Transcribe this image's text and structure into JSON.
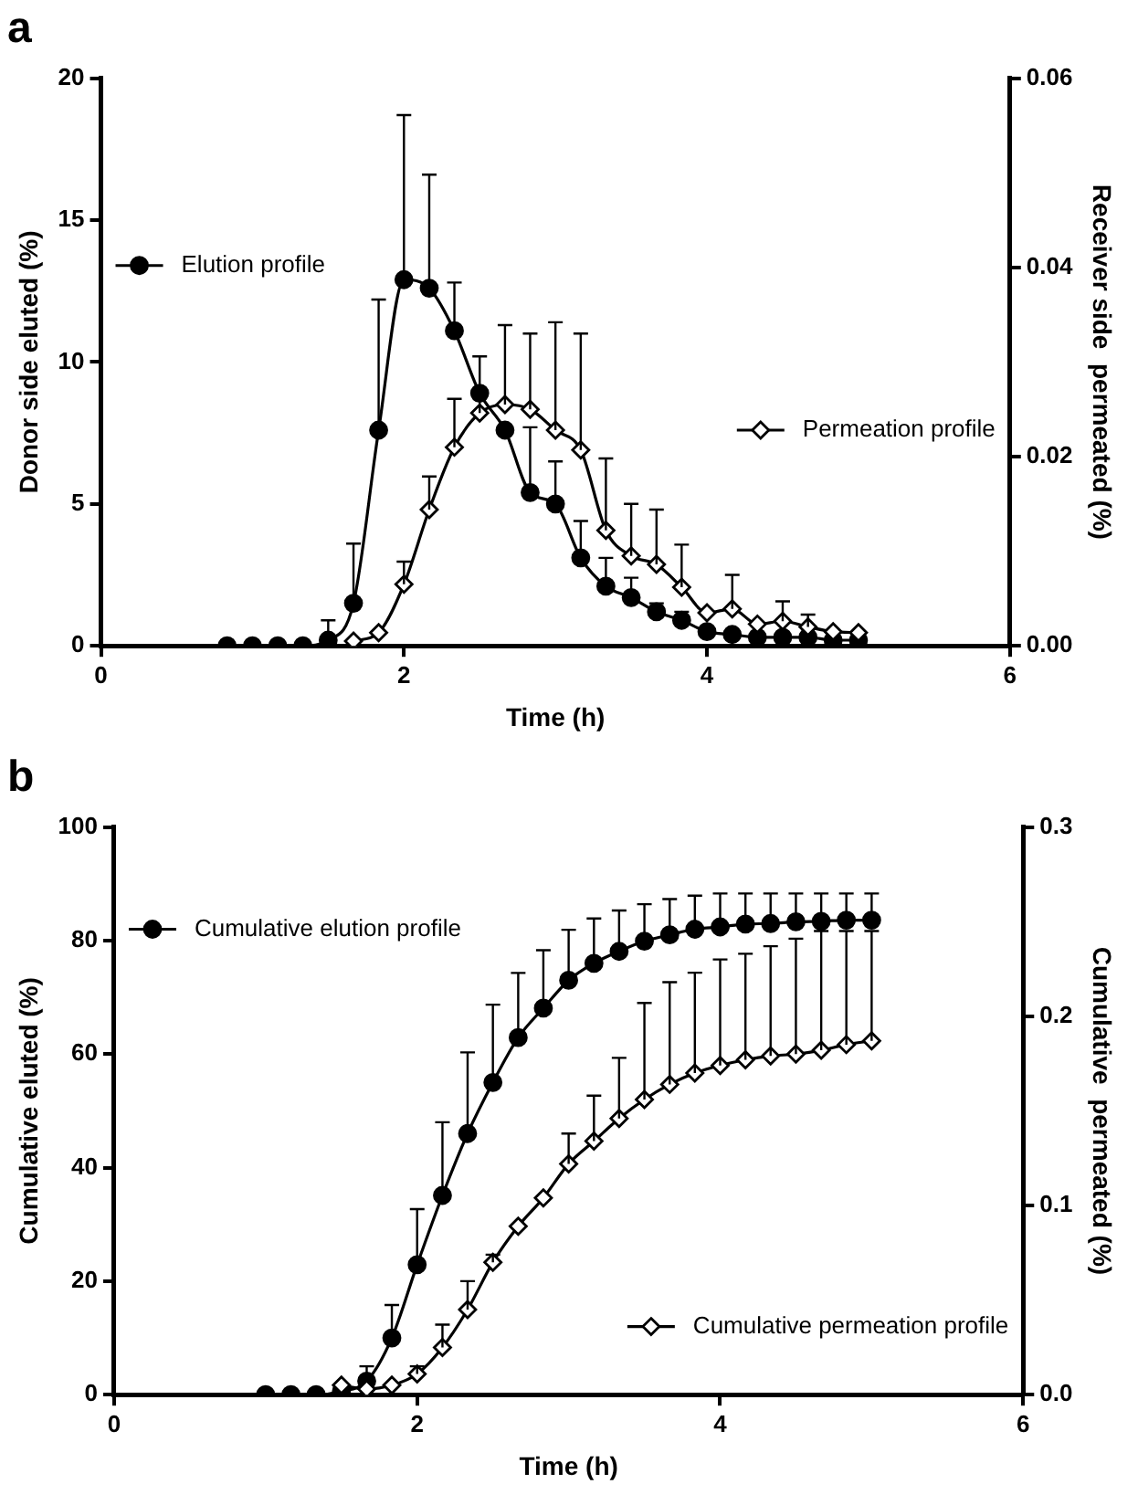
{
  "chart_data": [
    {
      "type": "line",
      "title": "a",
      "xlabel": "Time (h)",
      "ylabel": "Donor side eluted (%)",
      "y2label": "Receiver side  permeated (%)",
      "xlim": [
        0,
        6
      ],
      "xticks": [
        0,
        2,
        4,
        6
      ],
      "ylim": [
        0,
        20
      ],
      "yticks": [
        0,
        5,
        10,
        15,
        20
      ],
      "y2lim": [
        0,
        0.06
      ],
      "y2ticks": [
        {
          "value": 0,
          "label": "0.00"
        },
        0.02,
        0.04,
        0.06
      ],
      "grid": false,
      "legend": "top left",
      "series": [
        {
          "name": "Elution profile",
          "color": "#000000",
          "marker": "circle",
          "x": [
            0.833,
            1,
            1.167,
            1.333,
            1.5,
            1.667,
            1.833,
            2,
            2.167,
            2.333,
            2.5,
            2.667,
            2.833,
            3,
            3.167,
            3.333,
            3.5,
            3.667,
            3.833,
            4,
            4.167,
            4.333,
            4.5,
            4.667,
            4.833,
            5
          ],
          "values": [
            0,
            0,
            0,
            0,
            0.2,
            1.5,
            7.6,
            12.9,
            12.6,
            11.1,
            8.9,
            7.6,
            5.4,
            5.0,
            3.1,
            2.1,
            1.7,
            1.2,
            0.9,
            0.5,
            0.4,
            0.3,
            0.3,
            0.3,
            0.2,
            0.2
          ],
          "errors": [
            null,
            null,
            null,
            null,
            [
              0.2,
              0.9
            ],
            [
              1.5,
              3.6
            ],
            [
              7.6,
              12.2
            ],
            [
              12.9,
              18.7
            ],
            [
              12.6,
              16.6
            ],
            [
              11.1,
              12.8
            ],
            null,
            null,
            [
              5.4,
              7.7
            ],
            [
              5.0,
              6.5
            ],
            [
              3.1,
              4.4
            ],
            [
              2.1,
              3.1
            ],
            [
              1.7,
              2.4
            ],
            [
              1.2,
              1.5
            ],
            [
              0.9,
              1.2
            ],
            null,
            null,
            null,
            null,
            null,
            null,
            null
          ]
        },
        {
          "name": "Permeation profile",
          "color": "#000000",
          "marker": "diamond",
          "axis": "y2",
          "x": [
            1.667,
            1.833,
            2,
            2.167,
            2.333,
            2.5,
            2.667,
            2.833,
            3,
            3.167,
            3.333,
            3.5,
            3.667,
            3.833,
            4,
            4.167,
            4.333,
            4.5,
            4.667,
            4.833,
            5
          ],
          "values": [
            0.0005,
            0.0014,
            0.0065,
            0.0144,
            0.021,
            0.0246,
            0.0255,
            0.025,
            0.0228,
            0.0207,
            0.0122,
            0.0095,
            0.0086,
            0.0062,
            0.0035,
            0.0039,
            0.0023,
            0.0026,
            0.002,
            0.0015,
            0.0014
          ],
          "errors": [
            null,
            null,
            [
              0.0065,
              0.0089
            ],
            [
              0.0144,
              0.0179
            ],
            [
              0.021,
              0.0261
            ],
            [
              0.0246,
              0.0306
            ],
            [
              0.0255,
              0.0339
            ],
            [
              0.025,
              0.033
            ],
            [
              0.0228,
              0.0342
            ],
            [
              0.0207,
              0.033
            ],
            [
              0.0122,
              0.0198
            ],
            [
              0.0095,
              0.015
            ],
            [
              0.0086,
              0.0144
            ],
            [
              0.0062,
              0.0107
            ],
            null,
            [
              0.0039,
              0.0075
            ],
            null,
            [
              0.0026,
              0.0047
            ],
            [
              0.002,
              0.0033
            ],
            null,
            null
          ]
        }
      ]
    },
    {
      "type": "line",
      "title": "b",
      "xlabel": "Time (h)",
      "ylabel": "Cumulative eluted (%)",
      "y2label": "Cumulative  permeated (%)",
      "xlim": [
        0,
        6
      ],
      "xticks": [
        0,
        2,
        4,
        6
      ],
      "ylim": [
        0,
        100
      ],
      "yticks": [
        0,
        20,
        40,
        60,
        80,
        100
      ],
      "y2lim": [
        0,
        0.3
      ],
      "y2ticks": [
        {
          "value": 0,
          "label": "0.0"
        },
        0.1,
        0.2,
        0.3
      ],
      "grid": false,
      "legend": "left",
      "series": [
        {
          "name": "Cumulative elution profile",
          "color": "#000000",
          "marker": "circle",
          "x": [
            1,
            1.167,
            1.333,
            1.5,
            1.667,
            1.833,
            2,
            2.167,
            2.333,
            2.5,
            2.667,
            2.833,
            3,
            3.167,
            3.333,
            3.5,
            3.667,
            3.833,
            4,
            4.167,
            4.333,
            4.5,
            4.667,
            4.833,
            5
          ],
          "values": [
            0,
            0,
            0,
            0.6,
            2.4,
            10.0,
            22.9,
            35.1,
            46,
            55,
            62.9,
            68.1,
            73,
            76,
            78.1,
            79.9,
            81,
            82,
            82.4,
            82.9,
            83,
            83.3,
            83.4,
            83.6,
            83.6
          ],
          "errors": [
            null,
            null,
            null,
            null,
            [
              2.4,
              5
            ],
            [
              10,
              15.8
            ],
            [
              22.9,
              32.7
            ],
            [
              35.1,
              48
            ],
            [
              46,
              60.3
            ],
            [
              55,
              68.7
            ],
            [
              62.9,
              74.3
            ],
            [
              68.1,
              78.3
            ],
            [
              73,
              81.9
            ],
            [
              76,
              83.9
            ],
            [
              78.1,
              85.3
            ],
            [
              79.9,
              86.4
            ],
            [
              81,
              87.3
            ],
            [
              82,
              87.9
            ],
            [
              82.4,
              88.3
            ],
            [
              82.9,
              88.3
            ],
            [
              83,
              88.3
            ],
            [
              83.3,
              88.3
            ],
            [
              83.4,
              88.3
            ],
            [
              83.6,
              88.3
            ],
            [
              83.6,
              88.3
            ]
          ]
        },
        {
          "name": "Cumulative permeation profile",
          "color": "#000000",
          "marker": "diamond",
          "axis": "y2",
          "x": [
            1.5,
            1.667,
            1.833,
            2,
            2.167,
            2.333,
            2.5,
            2.667,
            2.833,
            3,
            3.167,
            3.333,
            3.5,
            3.667,
            3.833,
            4,
            4.167,
            4.333,
            4.5,
            4.667,
            4.833,
            5
          ],
          "values": [
            0.005,
            0.003,
            0.005,
            0.011,
            0.025,
            0.045,
            0.07,
            0.089,
            0.104,
            0.122,
            0.134,
            0.146,
            0.156,
            0.164,
            0.17,
            0.174,
            0.177,
            0.179,
            0.18,
            0.182,
            0.185,
            0.187
          ],
          "errors": [
            null,
            null,
            null,
            [
              0.011,
              0.015
            ],
            [
              0.025,
              0.037
            ],
            [
              0.045,
              0.06
            ],
            [
              0.07,
              0.074
            ],
            null,
            null,
            [
              0.122,
              0.138
            ],
            [
              0.134,
              0.158
            ],
            [
              0.146,
              0.178
            ],
            [
              0.156,
              0.207
            ],
            [
              0.164,
              0.218
            ],
            [
              0.17,
              0.223
            ],
            [
              0.174,
              0.23
            ],
            [
              0.177,
              0.233
            ],
            [
              0.179,
              0.237
            ],
            [
              0.18,
              0.241
            ],
            [
              0.182,
              0.245
            ],
            [
              0.185,
              0.245
            ],
            [
              0.187,
              0.245
            ]
          ]
        }
      ]
    }
  ]
}
